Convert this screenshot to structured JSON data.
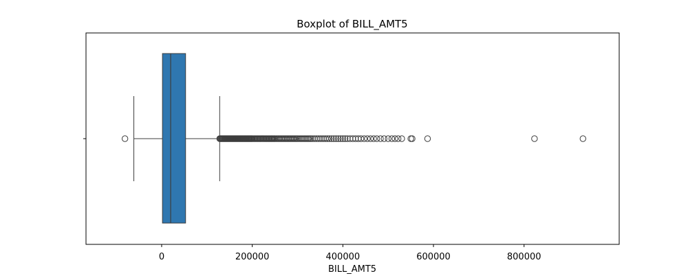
{
  "chart_data": {
    "type": "boxplot",
    "title": "Boxplot of BILL_AMT5",
    "xlabel": "BILL_AMT5",
    "ylabel": "",
    "xlim": [
      -167000,
      1010000
    ],
    "xticks": [
      0,
      200000,
      400000,
      600000,
      800000
    ],
    "xtick_labels": [
      "0",
      "200000",
      "400000",
      "600000",
      "800000"
    ],
    "box": {
      "whisker_low": -61400,
      "q1": 1800,
      "median": 19900,
      "q3": 52800,
      "whisker_high": 128100
    },
    "outliers_low": [
      -81000
    ],
    "outliers_high": [
      128100,
      129500,
      131000,
      132500,
      134000,
      135500,
      137000,
      138500,
      140000,
      141500,
      143000,
      144500,
      146000,
      147500,
      149000,
      150500,
      152000,
      153500,
      155000,
      156500,
      158000,
      159500,
      161000,
      162500,
      164000,
      165500,
      167000,
      168500,
      170000,
      171500,
      173000,
      174500,
      176000,
      177500,
      179000,
      180500,
      182000,
      183500,
      185000,
      186500,
      188000,
      189500,
      191000,
      192500,
      194000,
      195500,
      197000,
      198500,
      200000,
      202000,
      204000,
      206000,
      208000,
      210000,
      212000,
      214000,
      216000,
      218000,
      220000,
      222000,
      224000,
      226000,
      228000,
      230000,
      232000,
      234000,
      236000,
      238000,
      240000,
      242000,
      244000,
      246000,
      248000,
      250000,
      252500,
      255000,
      257500,
      260000,
      262500,
      265000,
      267500,
      270000,
      272500,
      275000,
      277500,
      280000,
      282500,
      285000,
      287500,
      290000,
      292500,
      295000,
      297500,
      300000,
      303000,
      306000,
      309000,
      312000,
      315000,
      318000,
      321000,
      324000,
      327000,
      330000,
      334000,
      338000,
      342000,
      346000,
      350000,
      354000,
      358000,
      362000,
      366000,
      370000,
      375000,
      380000,
      385000,
      390000,
      395000,
      400000,
      405000,
      410000,
      416000,
      422000,
      428000,
      434000,
      440000,
      447000,
      454000,
      461000,
      468000,
      475000,
      483000,
      491000,
      500000,
      508000,
      515000,
      522000,
      530000,
      550000,
      553000,
      587000,
      823000,
      930000
    ],
    "box_color": "#2f77b0",
    "line_color": "#3d3d3d",
    "grid": false,
    "legend": "none"
  }
}
